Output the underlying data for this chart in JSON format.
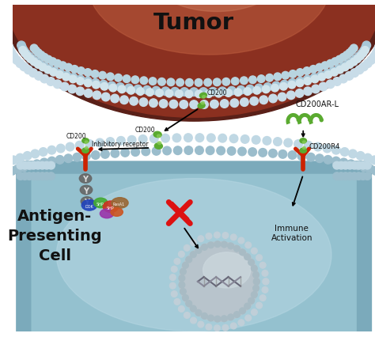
{
  "title": "Tumor",
  "bg_color": "#ffffff",
  "tumor_color_center": "#8B3A2A",
  "tumor_color_edge": "#5a2018",
  "membrane_dot_color": "#b8d0dc",
  "membrane_dot_color2": "#d0e4ec",
  "apc_bg_color": "#7fb8c8",
  "apc_bg_color2": "#a8cdd8",
  "apc_border_color": "#5599aa",
  "labels": {
    "CD200_top": "CD200",
    "CD200_mid": "CD200",
    "CD200_receptor": "CD200",
    "inhibitory": "Inhibitory receptor",
    "CD200AR_L": "CD200AR-L",
    "CD200R4": "CD200R4",
    "immune_activation": "Immune\nActivation"
  },
  "arrow_color": "#111111",
  "green_color": "#5aaa30",
  "green_color2": "#88cc55",
  "red_color": "#cc2200",
  "text_color": "#111111",
  "gray_Y_color": "#555555",
  "nucleus_color": "#c0c8cc",
  "nucleus_border": "#aaaaaa",
  "complex_colors": [
    "#2244cc",
    "#cc3322",
    "#33aa44",
    "#bb7722",
    "#6633cc",
    "#aa2288"
  ],
  "apc_label": "Antigen-\nPresenting\nCell"
}
